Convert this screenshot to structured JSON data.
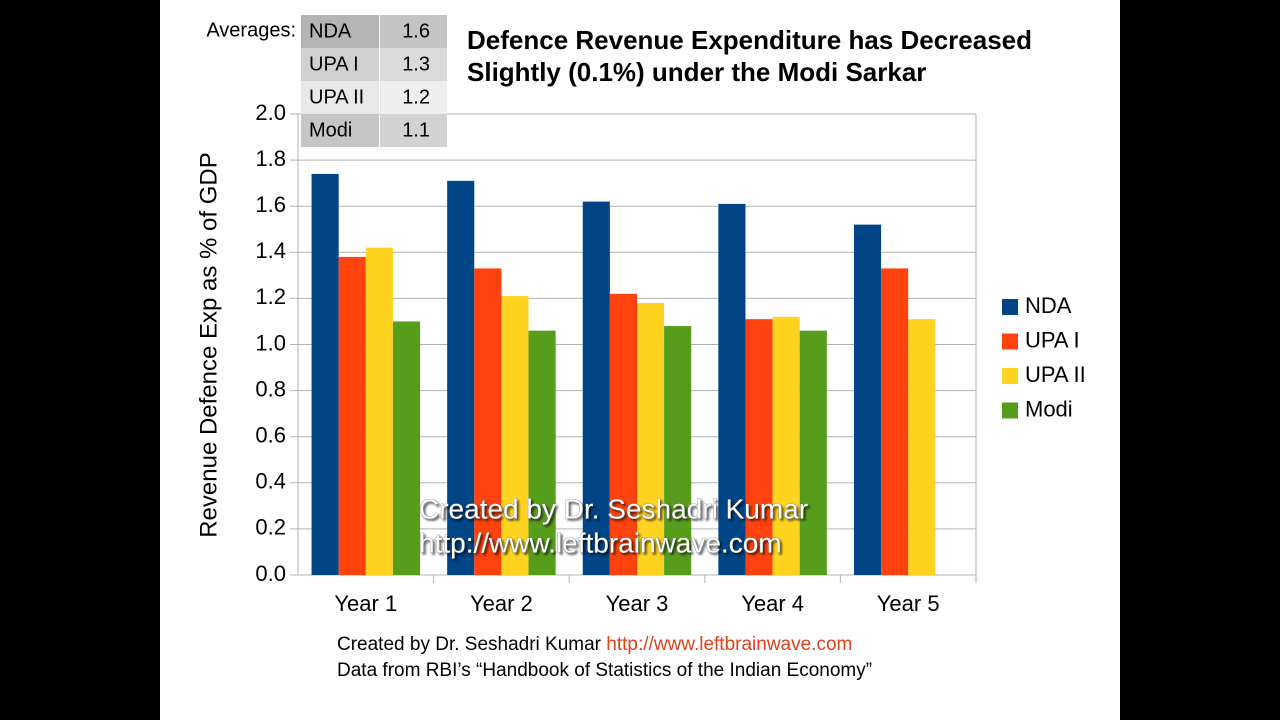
{
  "chart_data": {
    "type": "bar",
    "title": [
      "Defence Revenue Expenditure has Decreased",
      "Slightly (0.1%) under the Modi Sarkar"
    ],
    "ylabel": "Revenue Defence Exp as % of GDP",
    "categories": [
      "Year 1",
      "Year 2",
      "Year 3",
      "Year 4",
      "Year 5"
    ],
    "series": [
      {
        "name": "NDA",
        "color": "#004586",
        "values": [
          1.74,
          1.71,
          1.62,
          1.61,
          1.52
        ]
      },
      {
        "name": "UPA I",
        "color": "#ff420e",
        "values": [
          1.38,
          1.33,
          1.22,
          1.11,
          1.33
        ]
      },
      {
        "name": "UPA II",
        "color": "#ffd320",
        "values": [
          1.42,
          1.21,
          1.18,
          1.12,
          1.11
        ]
      },
      {
        "name": "Modi",
        "color": "#579d1c",
        "values": [
          1.1,
          1.06,
          1.08,
          1.06,
          null
        ]
      }
    ],
    "ylim": [
      0,
      2
    ],
    "yticks": [
      {
        "value": 0,
        "label": "0.0"
      },
      0.2,
      0.4,
      0.6,
      0.8,
      {
        "value": 1,
        "label": "1.0"
      },
      1.2,
      1.4,
      1.6,
      1.8,
      {
        "value": 2,
        "label": "2.0"
      }
    ],
    "grid": true,
    "legend": "right",
    "averages": {
      "label": "Averages:",
      "rows": [
        [
          "NDA",
          1.6
        ],
        [
          "UPA I",
          1.3
        ],
        [
          "UPA II",
          1.2
        ],
        [
          "Modi",
          1.1
        ]
      ]
    },
    "watermark": [
      "Created by Dr. Seshadri Kumar",
      "http://www.leftbrainwave.com"
    ],
    "footer": {
      "credit": "Created by Dr. Seshadri Kumar",
      "url": "http://www.leftbrainwave.com",
      "source": "Data from RBI’s “Handbook of Statistics of the Indian Economy”"
    }
  }
}
